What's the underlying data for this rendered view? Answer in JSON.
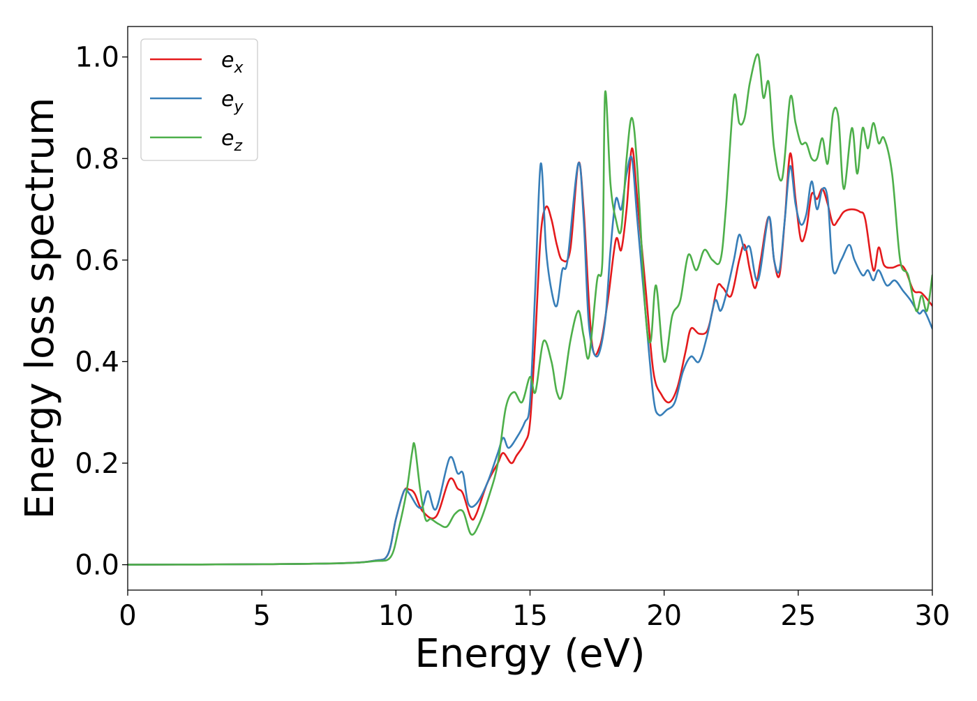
{
  "chart_data": {
    "type": "line",
    "title": "",
    "xlabel": "Energy (eV)",
    "ylabel": "Energy loss spectrum",
    "xlim": [
      0,
      30
    ],
    "ylim": [
      -0.05,
      1.06
    ],
    "xticks": [
      0,
      5,
      10,
      15,
      20,
      25,
      30
    ],
    "yticks": [
      0.0,
      0.2,
      0.4,
      0.6,
      0.8,
      1.0
    ],
    "xtick_labels": [
      "0",
      "5",
      "10",
      "15",
      "20",
      "25",
      "30"
    ],
    "ytick_labels": [
      "0.0",
      "0.2",
      "0.4",
      "0.6",
      "0.8",
      "1.0"
    ],
    "grid": false,
    "legend_position": "top-left",
    "series": [
      {
        "name": "e_x",
        "name_base": "e",
        "name_sub": "x",
        "color": "#e41a1c",
        "points": [
          [
            0,
            0
          ],
          [
            5,
            0.001
          ],
          [
            8,
            0.003
          ],
          [
            9.2,
            0.008
          ],
          [
            9.7,
            0.02
          ],
          [
            10,
            0.09
          ],
          [
            10.3,
            0.145
          ],
          [
            10.5,
            0.148
          ],
          [
            10.7,
            0.14
          ],
          [
            11,
            0.105
          ],
          [
            11.5,
            0.095
          ],
          [
            12,
            0.168
          ],
          [
            12.3,
            0.15
          ],
          [
            12.5,
            0.14
          ],
          [
            12.8,
            0.092
          ],
          [
            13,
            0.1
          ],
          [
            13.4,
            0.16
          ],
          [
            13.8,
            0.2
          ],
          [
            14,
            0.22
          ],
          [
            14.3,
            0.2
          ],
          [
            14.5,
            0.215
          ],
          [
            14.8,
            0.24
          ],
          [
            15,
            0.28
          ],
          [
            15.2,
            0.45
          ],
          [
            15.4,
            0.65
          ],
          [
            15.6,
            0.705
          ],
          [
            15.8,
            0.68
          ],
          [
            16,
            0.63
          ],
          [
            16.2,
            0.6
          ],
          [
            16.5,
            0.62
          ],
          [
            16.8,
            0.79
          ],
          [
            17,
            0.7
          ],
          [
            17.3,
            0.44
          ],
          [
            17.6,
            0.43
          ],
          [
            17.9,
            0.52
          ],
          [
            18.2,
            0.64
          ],
          [
            18.4,
            0.62
          ],
          [
            18.6,
            0.7
          ],
          [
            18.8,
            0.82
          ],
          [
            19,
            0.72
          ],
          [
            19.3,
            0.55
          ],
          [
            19.6,
            0.38
          ],
          [
            19.9,
            0.335
          ],
          [
            20.2,
            0.32
          ],
          [
            20.5,
            0.35
          ],
          [
            20.8,
            0.42
          ],
          [
            21,
            0.465
          ],
          [
            21.3,
            0.455
          ],
          [
            21.6,
            0.46
          ],
          [
            21.8,
            0.5
          ],
          [
            22,
            0.55
          ],
          [
            22.2,
            0.545
          ],
          [
            22.5,
            0.53
          ],
          [
            22.8,
            0.6
          ],
          [
            23,
            0.63
          ],
          [
            23.2,
            0.58
          ],
          [
            23.4,
            0.545
          ],
          [
            23.6,
            0.6
          ],
          [
            23.9,
            0.685
          ],
          [
            24.1,
            0.6
          ],
          [
            24.3,
            0.57
          ],
          [
            24.5,
            0.68
          ],
          [
            24.7,
            0.81
          ],
          [
            24.9,
            0.72
          ],
          [
            25.1,
            0.64
          ],
          [
            25.3,
            0.66
          ],
          [
            25.5,
            0.73
          ],
          [
            25.7,
            0.72
          ],
          [
            25.9,
            0.74
          ],
          [
            26.1,
            0.71
          ],
          [
            26.3,
            0.67
          ],
          [
            26.5,
            0.68
          ],
          [
            26.7,
            0.695
          ],
          [
            27,
            0.7
          ],
          [
            27.3,
            0.695
          ],
          [
            27.5,
            0.68
          ],
          [
            27.8,
            0.58
          ],
          [
            28,
            0.625
          ],
          [
            28.2,
            0.59
          ],
          [
            28.5,
            0.585
          ],
          [
            28.8,
            0.59
          ],
          [
            29,
            0.58
          ],
          [
            29.3,
            0.54
          ],
          [
            29.6,
            0.535
          ],
          [
            30,
            0.51
          ]
        ]
      },
      {
        "name": "e_y",
        "name_base": "e",
        "name_sub": "y",
        "color": "#377eb8",
        "points": [
          [
            0,
            0
          ],
          [
            5,
            0.001
          ],
          [
            8,
            0.003
          ],
          [
            9.2,
            0.008
          ],
          [
            9.7,
            0.02
          ],
          [
            10,
            0.09
          ],
          [
            10.3,
            0.145
          ],
          [
            10.5,
            0.14
          ],
          [
            10.8,
            0.115
          ],
          [
            11,
            0.115
          ],
          [
            11.2,
            0.145
          ],
          [
            11.5,
            0.11
          ],
          [
            12,
            0.21
          ],
          [
            12.3,
            0.18
          ],
          [
            12.5,
            0.18
          ],
          [
            12.7,
            0.12
          ],
          [
            13,
            0.12
          ],
          [
            13.4,
            0.16
          ],
          [
            13.8,
            0.22
          ],
          [
            14,
            0.25
          ],
          [
            14.2,
            0.23
          ],
          [
            14.5,
            0.25
          ],
          [
            14.8,
            0.28
          ],
          [
            15,
            0.32
          ],
          [
            15.2,
            0.55
          ],
          [
            15.4,
            0.79
          ],
          [
            15.6,
            0.62
          ],
          [
            15.8,
            0.54
          ],
          [
            16,
            0.51
          ],
          [
            16.2,
            0.58
          ],
          [
            16.4,
            0.6
          ],
          [
            16.8,
            0.79
          ],
          [
            17,
            0.68
          ],
          [
            17.2,
            0.47
          ],
          [
            17.5,
            0.41
          ],
          [
            17.8,
            0.48
          ],
          [
            18,
            0.62
          ],
          [
            18.2,
            0.72
          ],
          [
            18.4,
            0.7
          ],
          [
            18.6,
            0.77
          ],
          [
            18.8,
            0.8
          ],
          [
            19,
            0.68
          ],
          [
            19.3,
            0.5
          ],
          [
            19.6,
            0.33
          ],
          [
            19.8,
            0.295
          ],
          [
            20.1,
            0.305
          ],
          [
            20.4,
            0.32
          ],
          [
            20.7,
            0.38
          ],
          [
            21,
            0.41
          ],
          [
            21.3,
            0.4
          ],
          [
            21.6,
            0.45
          ],
          [
            21.9,
            0.52
          ],
          [
            22.1,
            0.5
          ],
          [
            22.3,
            0.53
          ],
          [
            22.6,
            0.6
          ],
          [
            22.8,
            0.65
          ],
          [
            23,
            0.62
          ],
          [
            23.2,
            0.625
          ],
          [
            23.5,
            0.56
          ],
          [
            23.9,
            0.685
          ],
          [
            24.1,
            0.6
          ],
          [
            24.3,
            0.58
          ],
          [
            24.5,
            0.68
          ],
          [
            24.7,
            0.785
          ],
          [
            24.9,
            0.71
          ],
          [
            25.1,
            0.67
          ],
          [
            25.3,
            0.69
          ],
          [
            25.5,
            0.755
          ],
          [
            25.7,
            0.7
          ],
          [
            25.9,
            0.74
          ],
          [
            26.1,
            0.72
          ],
          [
            26.3,
            0.58
          ],
          [
            26.6,
            0.6
          ],
          [
            26.9,
            0.63
          ],
          [
            27.1,
            0.6
          ],
          [
            27.4,
            0.57
          ],
          [
            27.6,
            0.58
          ],
          [
            27.8,
            0.56
          ],
          [
            28,
            0.58
          ],
          [
            28.3,
            0.55
          ],
          [
            28.6,
            0.56
          ],
          [
            28.9,
            0.54
          ],
          [
            29.2,
            0.52
          ],
          [
            29.5,
            0.495
          ],
          [
            29.7,
            0.5
          ],
          [
            30,
            0.465
          ]
        ]
      },
      {
        "name": "e_z",
        "name_base": "e",
        "name_sub": "z",
        "color": "#4daf4a",
        "points": [
          [
            0,
            0
          ],
          [
            5,
            0.001
          ],
          [
            8,
            0.003
          ],
          [
            9.2,
            0.007
          ],
          [
            9.8,
            0.015
          ],
          [
            10.1,
            0.07
          ],
          [
            10.4,
            0.145
          ],
          [
            10.6,
            0.22
          ],
          [
            10.7,
            0.235
          ],
          [
            10.9,
            0.15
          ],
          [
            11.1,
            0.09
          ],
          [
            11.3,
            0.09
          ],
          [
            11.6,
            0.08
          ],
          [
            11.9,
            0.075
          ],
          [
            12.2,
            0.1
          ],
          [
            12.5,
            0.105
          ],
          [
            12.8,
            0.06
          ],
          [
            13.1,
            0.08
          ],
          [
            13.5,
            0.14
          ],
          [
            13.8,
            0.2
          ],
          [
            14.1,
            0.31
          ],
          [
            14.4,
            0.34
          ],
          [
            14.7,
            0.32
          ],
          [
            15,
            0.37
          ],
          [
            15.2,
            0.34
          ],
          [
            15.5,
            0.44
          ],
          [
            15.8,
            0.4
          ],
          [
            16,
            0.34
          ],
          [
            16.2,
            0.335
          ],
          [
            16.5,
            0.44
          ],
          [
            16.8,
            0.5
          ],
          [
            17,
            0.45
          ],
          [
            17.2,
            0.41
          ],
          [
            17.5,
            0.56
          ],
          [
            17.7,
            0.6
          ],
          [
            17.8,
            0.93
          ],
          [
            18,
            0.75
          ],
          [
            18.2,
            0.68
          ],
          [
            18.4,
            0.66
          ],
          [
            18.6,
            0.8
          ],
          [
            18.8,
            0.88
          ],
          [
            19,
            0.78
          ],
          [
            19.3,
            0.5
          ],
          [
            19.5,
            0.44
          ],
          [
            19.7,
            0.55
          ],
          [
            20,
            0.4
          ],
          [
            20.3,
            0.49
          ],
          [
            20.6,
            0.52
          ],
          [
            20.9,
            0.61
          ],
          [
            21.2,
            0.58
          ],
          [
            21.5,
            0.62
          ],
          [
            21.8,
            0.6
          ],
          [
            22.1,
            0.6
          ],
          [
            22.3,
            0.7
          ],
          [
            22.6,
            0.92
          ],
          [
            22.8,
            0.87
          ],
          [
            23,
            0.88
          ],
          [
            23.2,
            0.95
          ],
          [
            23.5,
            1.005
          ],
          [
            23.7,
            0.92
          ],
          [
            23.9,
            0.95
          ],
          [
            24.1,
            0.82
          ],
          [
            24.4,
            0.76
          ],
          [
            24.7,
            0.92
          ],
          [
            24.9,
            0.87
          ],
          [
            25.1,
            0.83
          ],
          [
            25.3,
            0.83
          ],
          [
            25.5,
            0.8
          ],
          [
            25.7,
            0.8
          ],
          [
            25.9,
            0.84
          ],
          [
            26.1,
            0.79
          ],
          [
            26.3,
            0.89
          ],
          [
            26.5,
            0.88
          ],
          [
            26.7,
            0.74
          ],
          [
            27,
            0.86
          ],
          [
            27.2,
            0.77
          ],
          [
            27.4,
            0.86
          ],
          [
            27.6,
            0.82
          ],
          [
            27.8,
            0.87
          ],
          [
            28,
            0.83
          ],
          [
            28.2,
            0.84
          ],
          [
            28.5,
            0.77
          ],
          [
            28.8,
            0.6
          ],
          [
            29.1,
            0.57
          ],
          [
            29.4,
            0.5
          ],
          [
            29.6,
            0.53
          ],
          [
            29.8,
            0.5
          ],
          [
            30,
            0.57
          ]
        ]
      }
    ]
  }
}
